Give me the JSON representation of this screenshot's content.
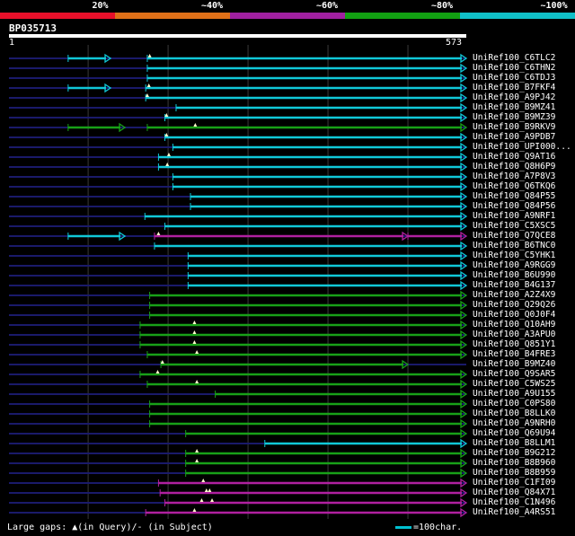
{
  "legend": {
    "segments": [
      {
        "label": "20%",
        "color": "#e8102a"
      },
      {
        "label": "~40%",
        "color": "#e07018"
      },
      {
        "label": "~60%",
        "color": "#a020a0"
      },
      {
        "label": "~80%",
        "color": "#12a012"
      },
      {
        "label": "~100%",
        "color": "#10c0c8"
      }
    ]
  },
  "query": {
    "id": "BP035713",
    "start": "1",
    "end": "573",
    "length": 573
  },
  "colors": {
    "cyan": "#10c8d8",
    "green": "#18a018",
    "magenta": "#b020a0",
    "dim": "#1a1a6a",
    "triangle": "#fffacd"
  },
  "hits": [
    {
      "name": "UniRef100_C6TLC2",
      "color": "cyan",
      "segs": [
        [
          75,
          128
        ],
        [
          174,
          573
        ]
      ],
      "gaps": [
        177
      ]
    },
    {
      "name": "UniRef100_C6THN2",
      "color": "cyan",
      "segs": [
        [
          174,
          573
        ]
      ],
      "gaps": []
    },
    {
      "name": "UniRef100_C6TDJ3",
      "color": "cyan",
      "segs": [
        [
          174,
          573
        ]
      ],
      "gaps": []
    },
    {
      "name": "UniRef100_B7FKF4",
      "color": "cyan",
      "segs": [
        [
          75,
          128
        ],
        [
          172,
          573
        ]
      ],
      "gaps": [
        176
      ]
    },
    {
      "name": "UniRef100_A9PJ42",
      "color": "cyan",
      "segs": [
        [
          172,
          573
        ]
      ],
      "gaps": [
        174
      ]
    },
    {
      "name": "UniRef100_B9MZ41",
      "color": "cyan",
      "segs": [
        [
          210,
          573
        ]
      ],
      "gaps": []
    },
    {
      "name": "UniRef100_B9MZ39",
      "color": "cyan",
      "segs": [
        [
          196,
          573
        ]
      ],
      "gaps": [
        198
      ]
    },
    {
      "name": "UniRef100_B9RKV9",
      "color": "green",
      "segs": [
        [
          75,
          146
        ],
        [
          174,
          573
        ]
      ],
      "gaps": [
        234
      ]
    },
    {
      "name": "UniRef100_A9PDB7",
      "color": "cyan",
      "segs": [
        [
          196,
          573
        ]
      ],
      "gaps": [
        198
      ]
    },
    {
      "name": "UniRef100_UPI000...",
      "color": "cyan",
      "segs": [
        [
          206,
          573
        ]
      ],
      "gaps": []
    },
    {
      "name": "UniRef100_Q9AT16",
      "color": "cyan",
      "segs": [
        [
          188,
          573
        ]
      ],
      "gaps": [
        201
      ]
    },
    {
      "name": "UniRef100_Q8H6P9",
      "color": "cyan",
      "segs": [
        [
          188,
          573
        ]
      ],
      "gaps": [
        199
      ]
    },
    {
      "name": "UniRef100_A7P8V3",
      "color": "cyan",
      "segs": [
        [
          206,
          573
        ]
      ],
      "gaps": []
    },
    {
      "name": "UniRef100_Q6TKQ6",
      "color": "cyan",
      "segs": [
        [
          206,
          573
        ]
      ],
      "gaps": []
    },
    {
      "name": "UniRef100_Q84P55",
      "color": "cyan",
      "segs": [
        [
          228,
          573
        ]
      ],
      "gaps": []
    },
    {
      "name": "UniRef100_Q84P56",
      "color": "cyan",
      "segs": [
        [
          228,
          573
        ]
      ],
      "gaps": []
    },
    {
      "name": "UniRef100_A9NRF1",
      "color": "cyan",
      "segs": [
        [
          171,
          573
        ]
      ],
      "gaps": []
    },
    {
      "name": "UniRef100_C5XSC5",
      "color": "cyan",
      "segs": [
        [
          196,
          573
        ]
      ],
      "gaps": []
    },
    {
      "name": "UniRef100_Q7QCE8",
      "color": "magenta",
      "segs": [
        [
          75,
          146
        ],
        [
          183,
          500
        ],
        [
          500,
          573
        ]
      ],
      "gaps": [
        188
      ]
    },
    {
      "name": "UniRef100_B6TNC0",
      "color": "cyan",
      "segs": [
        [
          183,
          573
        ]
      ],
      "gaps": []
    },
    {
      "name": "UniRef100_C5YHK1",
      "color": "cyan",
      "segs": [
        [
          225,
          573
        ]
      ],
      "gaps": []
    },
    {
      "name": "UniRef100_A9RGG9",
      "color": "cyan",
      "segs": [
        [
          225,
          573
        ]
      ],
      "gaps": []
    },
    {
      "name": "UniRef100_B6U990",
      "color": "cyan",
      "segs": [
        [
          225,
          573
        ]
      ],
      "gaps": []
    },
    {
      "name": "UniRef100_B4G137",
      "color": "cyan",
      "segs": [
        [
          225,
          573
        ]
      ],
      "gaps": []
    },
    {
      "name": "UniRef100_A2Z4X9",
      "color": "green",
      "segs": [
        [
          177,
          573
        ]
      ],
      "gaps": []
    },
    {
      "name": "UniRef100_Q29Q26",
      "color": "green",
      "segs": [
        [
          177,
          573
        ]
      ],
      "gaps": []
    },
    {
      "name": "UniRef100_Q0J0F4",
      "color": "green",
      "segs": [
        [
          177,
          573
        ]
      ],
      "gaps": []
    },
    {
      "name": "UniRef100_Q10AH9",
      "color": "green",
      "segs": [
        [
          165,
          573
        ]
      ],
      "gaps": [
        233
      ]
    },
    {
      "name": "UniRef100_A3APU0",
      "color": "green",
      "segs": [
        [
          165,
          573
        ]
      ],
      "gaps": [
        233
      ]
    },
    {
      "name": "UniRef100_Q851Y1",
      "color": "green",
      "segs": [
        [
          165,
          573
        ]
      ],
      "gaps": [
        233
      ]
    },
    {
      "name": "UniRef100_B4FRE3",
      "color": "green",
      "segs": [
        [
          174,
          573
        ]
      ],
      "gaps": [
        236
      ]
    },
    {
      "name": "UniRef100_B9MZ40",
      "color": "green",
      "segs": [
        [
          191,
          500
        ]
      ],
      "gaps": [
        193
      ]
    },
    {
      "name": "UniRef100_Q9SAR5",
      "color": "green",
      "segs": [
        [
          165,
          573
        ]
      ],
      "gaps": [
        187
      ]
    },
    {
      "name": "UniRef100_C5WS25",
      "color": "green",
      "segs": [
        [
          174,
          573
        ]
      ],
      "gaps": [
        236
      ]
    },
    {
      "name": "UniRef100_A9U155",
      "color": "green",
      "segs": [
        [
          259,
          573
        ]
      ],
      "gaps": []
    },
    {
      "name": "UniRef100_C0PS80",
      "color": "green",
      "segs": [
        [
          177,
          573
        ]
      ],
      "gaps": []
    },
    {
      "name": "UniRef100_B8LLK0",
      "color": "green",
      "segs": [
        [
          177,
          573
        ]
      ],
      "gaps": []
    },
    {
      "name": "UniRef100_A9NRH0",
      "color": "green",
      "segs": [
        [
          177,
          573
        ]
      ],
      "gaps": []
    },
    {
      "name": "UniRef100_Q69U94",
      "color": "green",
      "segs": [
        [
          222,
          573
        ]
      ],
      "gaps": []
    },
    {
      "name": "UniRef100_B8LLM1",
      "color": "cyan",
      "segs": [
        [
          321,
          573
        ]
      ],
      "gaps": []
    },
    {
      "name": "UniRef100_B9G212",
      "color": "green",
      "segs": [
        [
          222,
          573
        ]
      ],
      "gaps": [
        236
      ]
    },
    {
      "name": "UniRef100_B8B960",
      "color": "green",
      "segs": [
        [
          222,
          573
        ]
      ],
      "gaps": [
        236
      ]
    },
    {
      "name": "UniRef100_B8B959",
      "color": "green",
      "segs": [
        [
          222,
          573
        ]
      ],
      "gaps": []
    },
    {
      "name": "UniRef100_C1FI09",
      "color": "magenta",
      "segs": [
        [
          188,
          573
        ]
      ],
      "gaps": [
        244
      ]
    },
    {
      "name": "UniRef100_Q84X71",
      "color": "magenta",
      "segs": [
        [
          190,
          573
        ]
      ],
      "gaps": [
        248,
        252
      ]
    },
    {
      "name": "UniRef100_C1N496",
      "color": "magenta",
      "segs": [
        [
          196,
          573
        ]
      ],
      "gaps": [
        242,
        255
      ]
    },
    {
      "name": "UniRef100_A4RS51",
      "color": "magenta",
      "segs": [
        [
          172,
          573
        ]
      ],
      "gaps": [
        233
      ]
    }
  ],
  "footer": {
    "gaps_text": "Large gaps: ▲(in Query)/- (in Subject)",
    "scale_text": "=100char."
  }
}
